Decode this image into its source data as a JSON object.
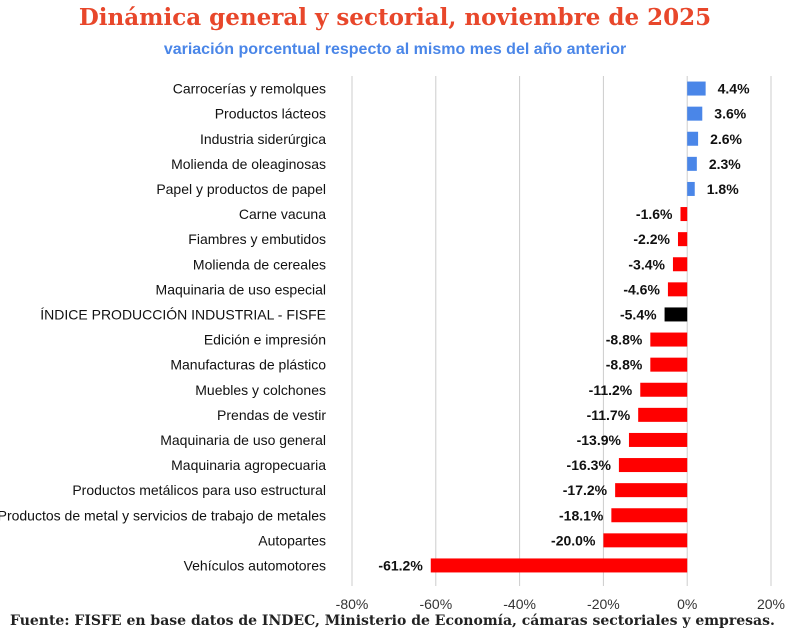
{
  "chart_data": {
    "type": "bar",
    "orientation": "horizontal",
    "title": "Dinámica general y sectorial, noviembre de 2025",
    "subtitle": "variación porcentual respecto al mismo mes del  año anterior",
    "source": "Fuente: FISFE en base datos de INDEC, Ministerio de Economía, cámaras sectoriales y empresas.",
    "xlim": [
      -80,
      20
    ],
    "xticks": [
      -80,
      -60,
      -40,
      -20,
      0,
      20
    ],
    "xtick_labels": [
      "-80%",
      "-60%",
      "-40%",
      "-20%",
      "0%",
      "20%"
    ],
    "grid": "vertical",
    "colors": {
      "positive": "#4a86e8",
      "negative": "#ff0000",
      "index": "#000000"
    },
    "categories": [
      "Carrocerías y remolques",
      "Productos lácteos",
      "Industria siderúrgica",
      "Molienda de oleaginosas",
      "Papel y productos de papel",
      "Carne vacuna",
      "Fiambres y embutidos",
      "Molienda de cereales",
      "Maquinaria de uso especial",
      "ÍNDICE PRODUCCIÓN INDUSTRIAL - FISFE",
      "Edición e impresión",
      "Manufacturas de plástico",
      "Muebles y colchones",
      "Prendas de vestir",
      "Maquinaria de uso general",
      "Maquinaria agropecuaria",
      "Productos metálicos para uso estructural",
      "Productos de metal y servicios de trabajo de metales",
      "Autopartes",
      "Vehículos automotores"
    ],
    "values": [
      4.4,
      3.6,
      2.6,
      2.3,
      1.8,
      -1.6,
      -2.2,
      -3.4,
      -4.6,
      -5.4,
      -8.8,
      -8.8,
      -11.2,
      -11.7,
      -13.9,
      -16.3,
      -17.2,
      -18.1,
      -20.0,
      -61.2
    ],
    "value_labels": [
      "4.4%",
      "3.6%",
      "2.6%",
      "2.3%",
      "1.8%",
      "-1.6%",
      "-2.2%",
      "-3.4%",
      "-4.6%",
      "-5.4%",
      "-8.8%",
      "-8.8%",
      "-11.2%",
      "-11.7%",
      "-13.9%",
      "-16.3%",
      "-17.2%",
      "-18.1%",
      "-20.0%",
      "-61.2%"
    ],
    "highlight_category": "ÍNDICE PRODUCCIÓN INDUSTRIAL - FISFE"
  }
}
